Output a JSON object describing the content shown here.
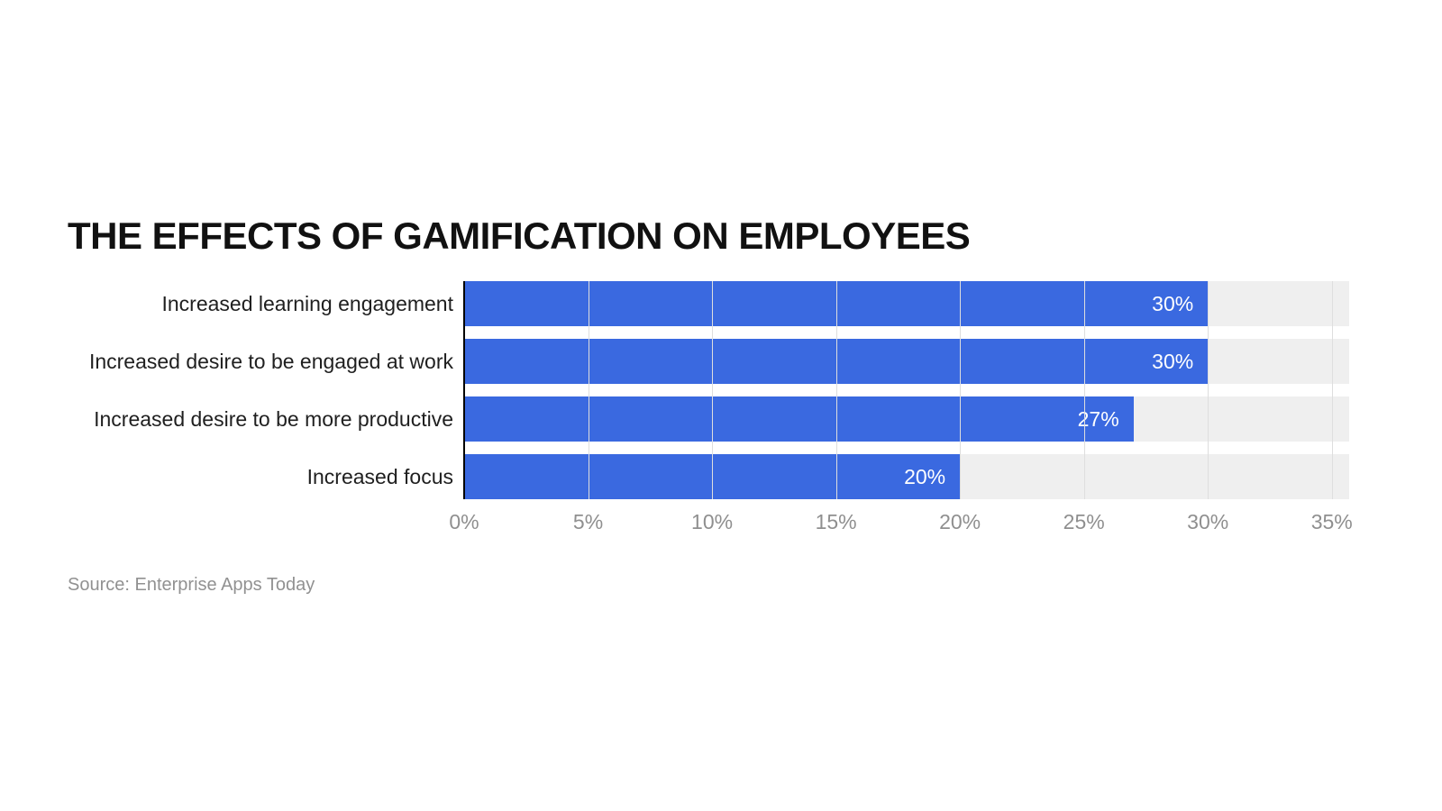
{
  "page": {
    "background": "#ffffff"
  },
  "chart": {
    "title": "THE EFFECTS OF GAMIFICATION ON EMPLOYEES",
    "source": "Source: Enterprise Apps Today"
  },
  "chart_data": {
    "type": "bar",
    "orientation": "horizontal",
    "title": "THE EFFECTS OF GAMIFICATION ON EMPLOYEES",
    "categories": [
      "Increased learning engagement",
      "Increased desire to be engaged at work",
      "Increased desire to be more productive",
      "Increased focus"
    ],
    "values": [
      30,
      30,
      27,
      20
    ],
    "value_labels": [
      "30%",
      "30%",
      "27%",
      "20%"
    ],
    "xlabel": "",
    "ylabel": "",
    "xlim": [
      0,
      35.7
    ],
    "ticks": [
      0,
      5,
      10,
      15,
      20,
      25,
      30,
      35
    ],
    "tick_labels": [
      "0%",
      "5%",
      "10%",
      "15%",
      "20%",
      "25%",
      "30%",
      "35%"
    ],
    "grid": true,
    "legend": false,
    "source": "Source: Enterprise Apps Today",
    "colors": {
      "bar": "#3a69e0",
      "track": "#efefef",
      "grid": "#dedede",
      "axisline": "#000000",
      "tick": "#8f8f8f",
      "label": "#1f1f1f",
      "value": "#ffffff",
      "title": "#111111",
      "source": "#919191"
    }
  }
}
